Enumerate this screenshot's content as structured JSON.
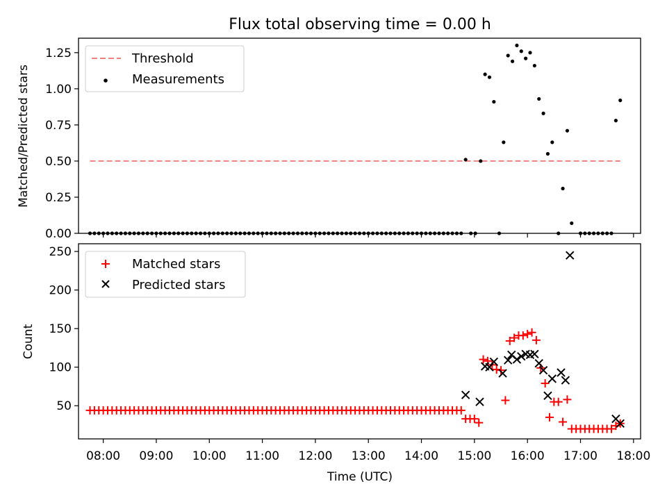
{
  "title": "Flux total observing time = 0.00 h",
  "xlabel": "Time (UTC)",
  "colors": {
    "threshold": "#f08080",
    "measurement": "#000000",
    "matched": "#ff0000",
    "predicted": "#000000"
  },
  "chart_data": [
    {
      "type": "scatter",
      "title": "Flux total observing time = 0.00 h",
      "ylabel": "Matched/Predicted stars",
      "xlim": [
        "07:32",
        "18:08"
      ],
      "ylim": [
        0,
        1.35
      ],
      "yticks": [
        "0.00",
        "0.25",
        "0.50",
        "0.75",
        "1.00",
        "1.25"
      ],
      "grid": false,
      "legend": {
        "position": "top-left",
        "entries": [
          "Threshold",
          "Measurements"
        ]
      },
      "threshold": {
        "name": "Threshold",
        "y": 0.5,
        "x_from": "07:45",
        "x_to": "17:45"
      },
      "measurements": {
        "name": "Measurements",
        "zero_run": {
          "x_from": "07:45",
          "x_to": "14:45",
          "step_min": 5
        },
        "extra_zero_x": [
          "14:56",
          "15:01",
          "15:28",
          "16:35",
          "17:00",
          "17:05",
          "17:10",
          "17:15",
          "17:20",
          "17:25",
          "17:30",
          "17:35"
        ],
        "points": [
          [
            "14:50",
            0.51
          ],
          [
            "15:07",
            0.5
          ],
          [
            "15:12",
            1.1
          ],
          [
            "15:17",
            1.08
          ],
          [
            "15:22",
            0.91
          ],
          [
            "15:33",
            0.63
          ],
          [
            "15:38",
            1.23
          ],
          [
            "15:43",
            1.19
          ],
          [
            "15:48",
            1.3
          ],
          [
            "15:53",
            1.26
          ],
          [
            "15:58",
            1.21
          ],
          [
            "16:03",
            1.25
          ],
          [
            "16:08",
            1.16
          ],
          [
            "16:13",
            0.93
          ],
          [
            "16:18",
            0.83
          ],
          [
            "16:23",
            0.55
          ],
          [
            "16:28",
            0.63
          ],
          [
            "16:40",
            0.31
          ],
          [
            "16:45",
            0.71
          ],
          [
            "16:50",
            0.07
          ],
          [
            "17:40",
            0.78
          ],
          [
            "17:45",
            0.92
          ]
        ]
      }
    },
    {
      "type": "scatter",
      "xlabel": "Time (UTC)",
      "ylabel": "Count",
      "xlim": [
        "07:32",
        "18:08"
      ],
      "ylim": [
        7,
        260
      ],
      "yticks": [
        "50",
        "100",
        "150",
        "200",
        "250"
      ],
      "xticks": [
        "08:00",
        "09:00",
        "10:00",
        "11:00",
        "12:00",
        "13:00",
        "14:00",
        "15:00",
        "16:00",
        "17:00",
        "18:00"
      ],
      "grid": false,
      "legend": {
        "position": "top-left",
        "entries": [
          "Matched stars",
          "Predicted stars"
        ]
      },
      "matched": {
        "name": "Matched stars",
        "flat_run": {
          "x_from": "07:45",
          "x_to": "14:45",
          "step_min": 5,
          "value": 44
        },
        "points": [
          [
            "14:50",
            33
          ],
          [
            "14:55",
            33
          ],
          [
            "15:00",
            33
          ],
          [
            "15:05",
            28
          ],
          [
            "15:10",
            110
          ],
          [
            "15:15",
            108
          ],
          [
            "15:20",
            103
          ],
          [
            "15:25",
            97
          ],
          [
            "15:30",
            96
          ],
          [
            "15:35",
            57
          ],
          [
            "15:40",
            134
          ],
          [
            "15:45",
            138
          ],
          [
            "15:50",
            141
          ],
          [
            "15:55",
            141
          ],
          [
            "16:00",
            143
          ],
          [
            "16:05",
            145
          ],
          [
            "16:10",
            135
          ],
          [
            "16:15",
            99
          ],
          [
            "16:20",
            79
          ],
          [
            "16:25",
            35
          ],
          [
            "16:30",
            55
          ],
          [
            "16:35",
            55
          ],
          [
            "16:40",
            29
          ],
          [
            "16:45",
            58
          ],
          [
            "16:50",
            20
          ],
          [
            "16:55",
            20
          ],
          [
            "17:00",
            20
          ],
          [
            "17:05",
            20
          ],
          [
            "17:10",
            20
          ],
          [
            "17:15",
            20
          ],
          [
            "17:20",
            20
          ],
          [
            "17:25",
            20
          ],
          [
            "17:30",
            20
          ],
          [
            "17:35",
            20
          ],
          [
            "17:40",
            24
          ],
          [
            "17:45",
            27
          ]
        ]
      },
      "predicted": {
        "name": "Predicted stars",
        "points": [
          [
            "14:50",
            64
          ],
          [
            "15:06",
            55
          ],
          [
            "15:12",
            101
          ],
          [
            "15:17",
            100
          ],
          [
            "15:22",
            107
          ],
          [
            "15:32",
            92
          ],
          [
            "15:38",
            109
          ],
          [
            "15:42",
            116
          ],
          [
            "15:48",
            110
          ],
          [
            "15:53",
            114
          ],
          [
            "15:58",
            117
          ],
          [
            "16:03",
            116
          ],
          [
            "16:08",
            117
          ],
          [
            "16:13",
            105
          ],
          [
            "16:18",
            96
          ],
          [
            "16:23",
            63
          ],
          [
            "16:28",
            85
          ],
          [
            "16:38",
            93
          ],
          [
            "16:43",
            83
          ],
          [
            "16:48",
            245
          ],
          [
            "17:40",
            33
          ],
          [
            "17:45",
            27
          ]
        ]
      }
    }
  ]
}
